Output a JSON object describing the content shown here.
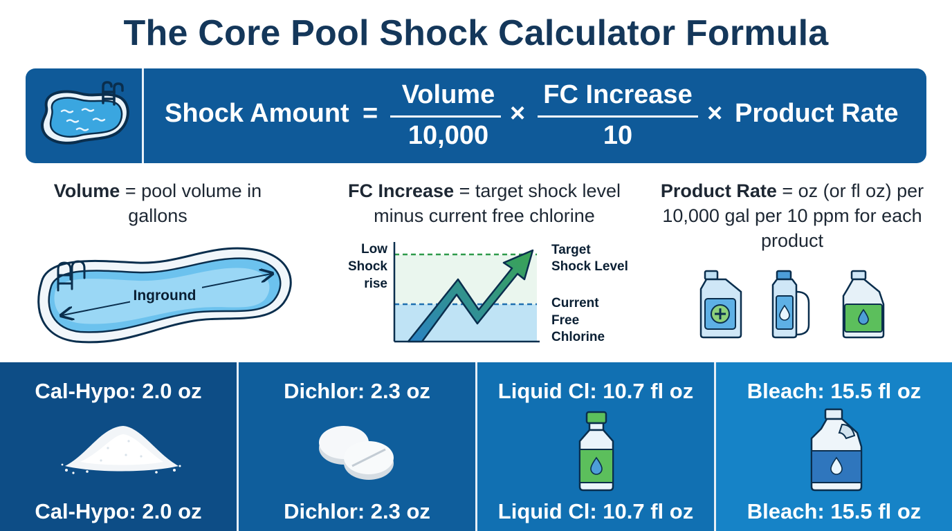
{
  "title": "The Core Pool Shock Calculator Formula",
  "formula": {
    "lhs": "Shock Amount",
    "equals": "=",
    "frac1_num": "Volume",
    "frac1_den": "10,000",
    "times1": "×",
    "frac2_num": "FC Increase",
    "frac2_den": "10",
    "times2": "×",
    "rhs": "Product Rate"
  },
  "definitions": {
    "volume": {
      "term": "Volume",
      "text": " = pool volume in gallons"
    },
    "fc_increase": {
      "term": "FC Increase",
      "text": " = target shock level minus current free chlorine"
    },
    "product_rate": {
      "term": "Product Rate",
      "text": " = oz (or fl oz) per 10,000 gal per 10 ppm for each product"
    }
  },
  "pool_diagram": {
    "label": "Inground"
  },
  "fc_chart": {
    "left_label": [
      "Low",
      "Shock",
      "rise"
    ],
    "target_label": [
      "Target",
      "Shock Level"
    ],
    "current_label": [
      "Current",
      "Free",
      "Chlorine"
    ]
  },
  "products": [
    {
      "top": "Cal-Hypo: 2.0 oz",
      "bottom": "Cal-Hypo: 2.0 oz",
      "icon": "powder-pile-icon"
    },
    {
      "top": "Dichlor: 2.3 oz",
      "bottom": "Dichlor: 2.3 oz",
      "icon": "tablets-icon"
    },
    {
      "top": "Liquid Cl: 10.7 fl oz",
      "bottom": "Liquid Cl: 10.7 fl oz",
      "icon": "green-bottle-icon"
    },
    {
      "top": "Bleach: 15.5 fl oz",
      "bottom": "Bleach: 15.5 fl oz",
      "icon": "bleach-jug-icon"
    }
  ],
  "colors": {
    "title": "#14375a",
    "formula_bar": "#0f5a99",
    "panel_1": "#0d4d86",
    "panel_2": "#0f5e9c",
    "panel_3": "#1170b2",
    "panel_4": "#1683c7",
    "target_line": "#2e9a4a",
    "current_line": "#1f6fb0"
  }
}
